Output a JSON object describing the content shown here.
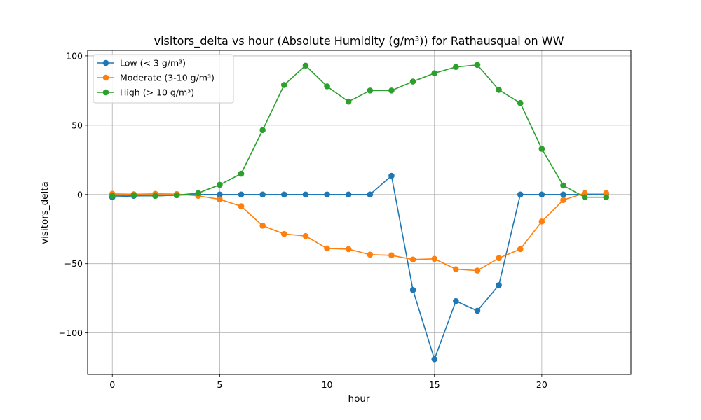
{
  "chart_data": {
    "type": "line",
    "title": "visitors_delta vs hour (Absolute Humidity (g/m³)) for Rathausquai on WW",
    "xlabel": "hour",
    "ylabel": "visitors_delta",
    "xlim": [
      -1.15,
      24.15
    ],
    "ylim": [
      -130,
      104
    ],
    "xticks": [
      0,
      5,
      10,
      15,
      20
    ],
    "yticks": [
      -100,
      -50,
      0,
      50,
      100
    ],
    "xtick_labels": [
      "0",
      "5",
      "10",
      "15",
      "20"
    ],
    "ytick_labels": [
      "−100",
      "−50",
      "0",
      "50",
      "100"
    ],
    "grid": true,
    "legend_position": "top-left",
    "x": [
      0,
      1,
      2,
      3,
      4,
      5,
      6,
      7,
      8,
      9,
      10,
      11,
      12,
      13,
      14,
      15,
      16,
      17,
      18,
      19,
      20,
      21,
      22,
      23
    ],
    "series": [
      {
        "name": "Low (< 3 g/m³)",
        "color": "#1f77b4",
        "values": [
          -2,
          -1,
          -1,
          -0.5,
          0,
          0,
          0,
          0,
          0,
          0,
          0,
          0,
          0,
          13.5,
          -69,
          -119,
          -77,
          -84,
          -65.5,
          0,
          0,
          0,
          0,
          0
        ]
      },
      {
        "name": "Moderate (3-10 g/m³)",
        "color": "#ff7f0e",
        "values": [
          0.5,
          0.2,
          0.5,
          0.3,
          -1,
          -3.5,
          -8.5,
          -22.5,
          -28.5,
          -30,
          -39,
          -39.5,
          -43.5,
          -44,
          -47,
          -46.5,
          -54,
          -55,
          -46,
          -39.5,
          -19.5,
          -4,
          1,
          1
        ]
      },
      {
        "name": "High (> 10 g/m³)",
        "color": "#2ca02c",
        "values": [
          -1,
          -0.5,
          -1,
          -0.5,
          1,
          7,
          15,
          46.5,
          79,
          93,
          78,
          67,
          75,
          75,
          81.5,
          87.5,
          92,
          93.5,
          75.5,
          66,
          33,
          6.5,
          -2,
          -2
        ]
      }
    ]
  }
}
